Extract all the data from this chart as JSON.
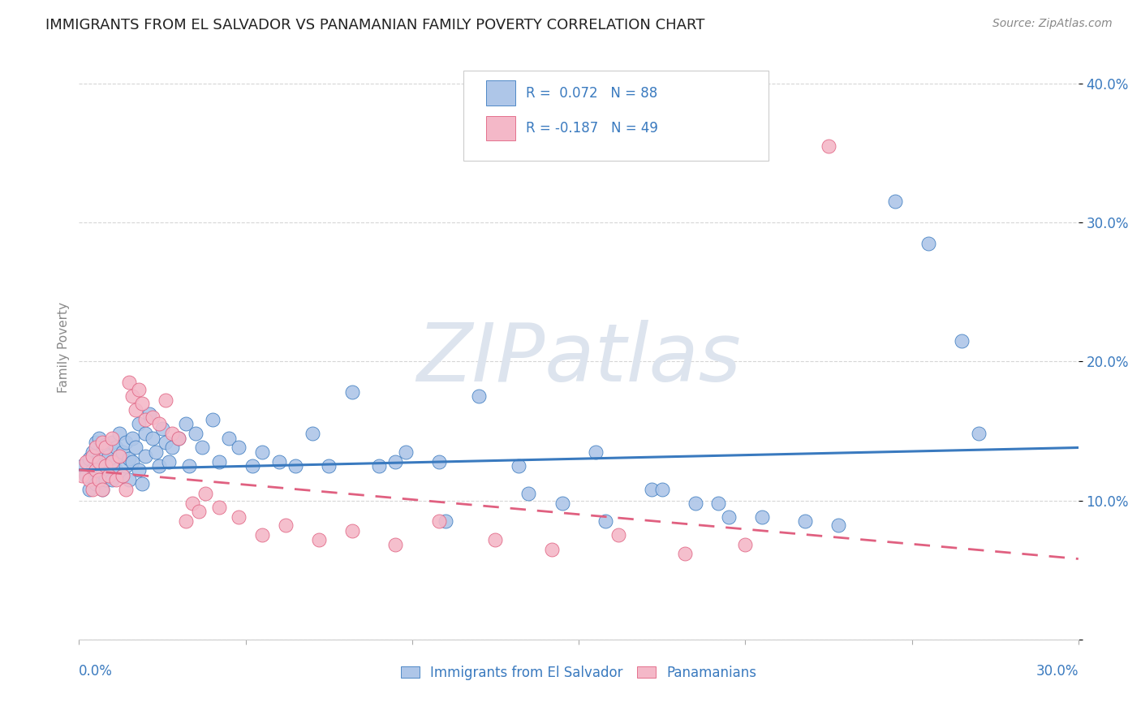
{
  "title": "IMMIGRANTS FROM EL SALVADOR VS PANAMANIAN FAMILY POVERTY CORRELATION CHART",
  "source": "Source: ZipAtlas.com",
  "ylabel": "Family Poverty",
  "series1_color": "#aec6e8",
  "series2_color": "#f4b8c8",
  "trendline1_color": "#3a7abf",
  "trendline2_color": "#e06080",
  "watermark": "ZIPatlas",
  "watermark_color": "#dde4ee",
  "xlim": [
    0.0,
    0.3
  ],
  "ylim": [
    0.0,
    0.42
  ],
  "ytick_vals": [
    0.0,
    0.1,
    0.2,
    0.3,
    0.4
  ],
  "ytick_labels": [
    "",
    "10.0%",
    "20.0%",
    "30.0%",
    "40.0%"
  ],
  "trendline1_y0": 0.122,
  "trendline1_y1": 0.138,
  "trendline2_y0": 0.122,
  "trendline2_y1": 0.058,
  "blue_x": [
    0.001,
    0.002,
    0.003,
    0.003,
    0.004,
    0.004,
    0.005,
    0.005,
    0.005,
    0.006,
    0.006,
    0.006,
    0.007,
    0.007,
    0.007,
    0.008,
    0.008,
    0.008,
    0.009,
    0.009,
    0.01,
    0.01,
    0.01,
    0.011,
    0.011,
    0.012,
    0.012,
    0.013,
    0.013,
    0.014,
    0.014,
    0.015,
    0.015,
    0.016,
    0.016,
    0.017,
    0.018,
    0.018,
    0.019,
    0.02,
    0.02,
    0.021,
    0.022,
    0.023,
    0.024,
    0.025,
    0.026,
    0.027,
    0.028,
    0.03,
    0.032,
    0.033,
    0.035,
    0.037,
    0.04,
    0.042,
    0.045,
    0.048,
    0.052,
    0.055,
    0.06,
    0.065,
    0.07,
    0.075,
    0.082,
    0.09,
    0.098,
    0.108,
    0.12,
    0.132,
    0.145,
    0.158,
    0.172,
    0.185,
    0.195,
    0.205,
    0.218,
    0.228,
    0.245,
    0.255,
    0.265,
    0.27,
    0.192,
    0.155,
    0.175,
    0.135,
    0.11,
    0.095
  ],
  "blue_y": [
    0.125,
    0.118,
    0.13,
    0.108,
    0.122,
    0.135,
    0.112,
    0.128,
    0.142,
    0.115,
    0.13,
    0.145,
    0.12,
    0.135,
    0.108,
    0.125,
    0.14,
    0.115,
    0.132,
    0.118,
    0.128,
    0.142,
    0.115,
    0.138,
    0.122,
    0.132,
    0.148,
    0.118,
    0.135,
    0.125,
    0.142,
    0.13,
    0.115,
    0.145,
    0.128,
    0.138,
    0.122,
    0.155,
    0.112,
    0.148,
    0.132,
    0.162,
    0.145,
    0.135,
    0.125,
    0.152,
    0.142,
    0.128,
    0.138,
    0.145,
    0.155,
    0.125,
    0.148,
    0.138,
    0.158,
    0.128,
    0.145,
    0.138,
    0.125,
    0.135,
    0.128,
    0.125,
    0.148,
    0.125,
    0.178,
    0.125,
    0.135,
    0.128,
    0.175,
    0.125,
    0.098,
    0.085,
    0.108,
    0.098,
    0.088,
    0.088,
    0.085,
    0.082,
    0.315,
    0.285,
    0.215,
    0.148,
    0.098,
    0.135,
    0.108,
    0.105,
    0.085,
    0.128
  ],
  "pink_x": [
    0.001,
    0.002,
    0.003,
    0.004,
    0.004,
    0.005,
    0.005,
    0.006,
    0.006,
    0.007,
    0.007,
    0.008,
    0.008,
    0.009,
    0.01,
    0.01,
    0.011,
    0.012,
    0.013,
    0.014,
    0.015,
    0.016,
    0.017,
    0.018,
    0.019,
    0.02,
    0.022,
    0.024,
    0.026,
    0.028,
    0.03,
    0.032,
    0.034,
    0.036,
    0.038,
    0.042,
    0.048,
    0.055,
    0.062,
    0.072,
    0.082,
    0.095,
    0.108,
    0.125,
    0.142,
    0.162,
    0.182,
    0.2,
    0.225
  ],
  "pink_y": [
    0.118,
    0.128,
    0.115,
    0.132,
    0.108,
    0.122,
    0.138,
    0.115,
    0.128,
    0.142,
    0.108,
    0.125,
    0.138,
    0.118,
    0.128,
    0.145,
    0.115,
    0.132,
    0.118,
    0.108,
    0.185,
    0.175,
    0.165,
    0.18,
    0.17,
    0.158,
    0.16,
    0.155,
    0.172,
    0.148,
    0.145,
    0.085,
    0.098,
    0.092,
    0.105,
    0.095,
    0.088,
    0.075,
    0.082,
    0.072,
    0.078,
    0.068,
    0.085,
    0.072,
    0.065,
    0.075,
    0.062,
    0.068,
    0.355
  ]
}
